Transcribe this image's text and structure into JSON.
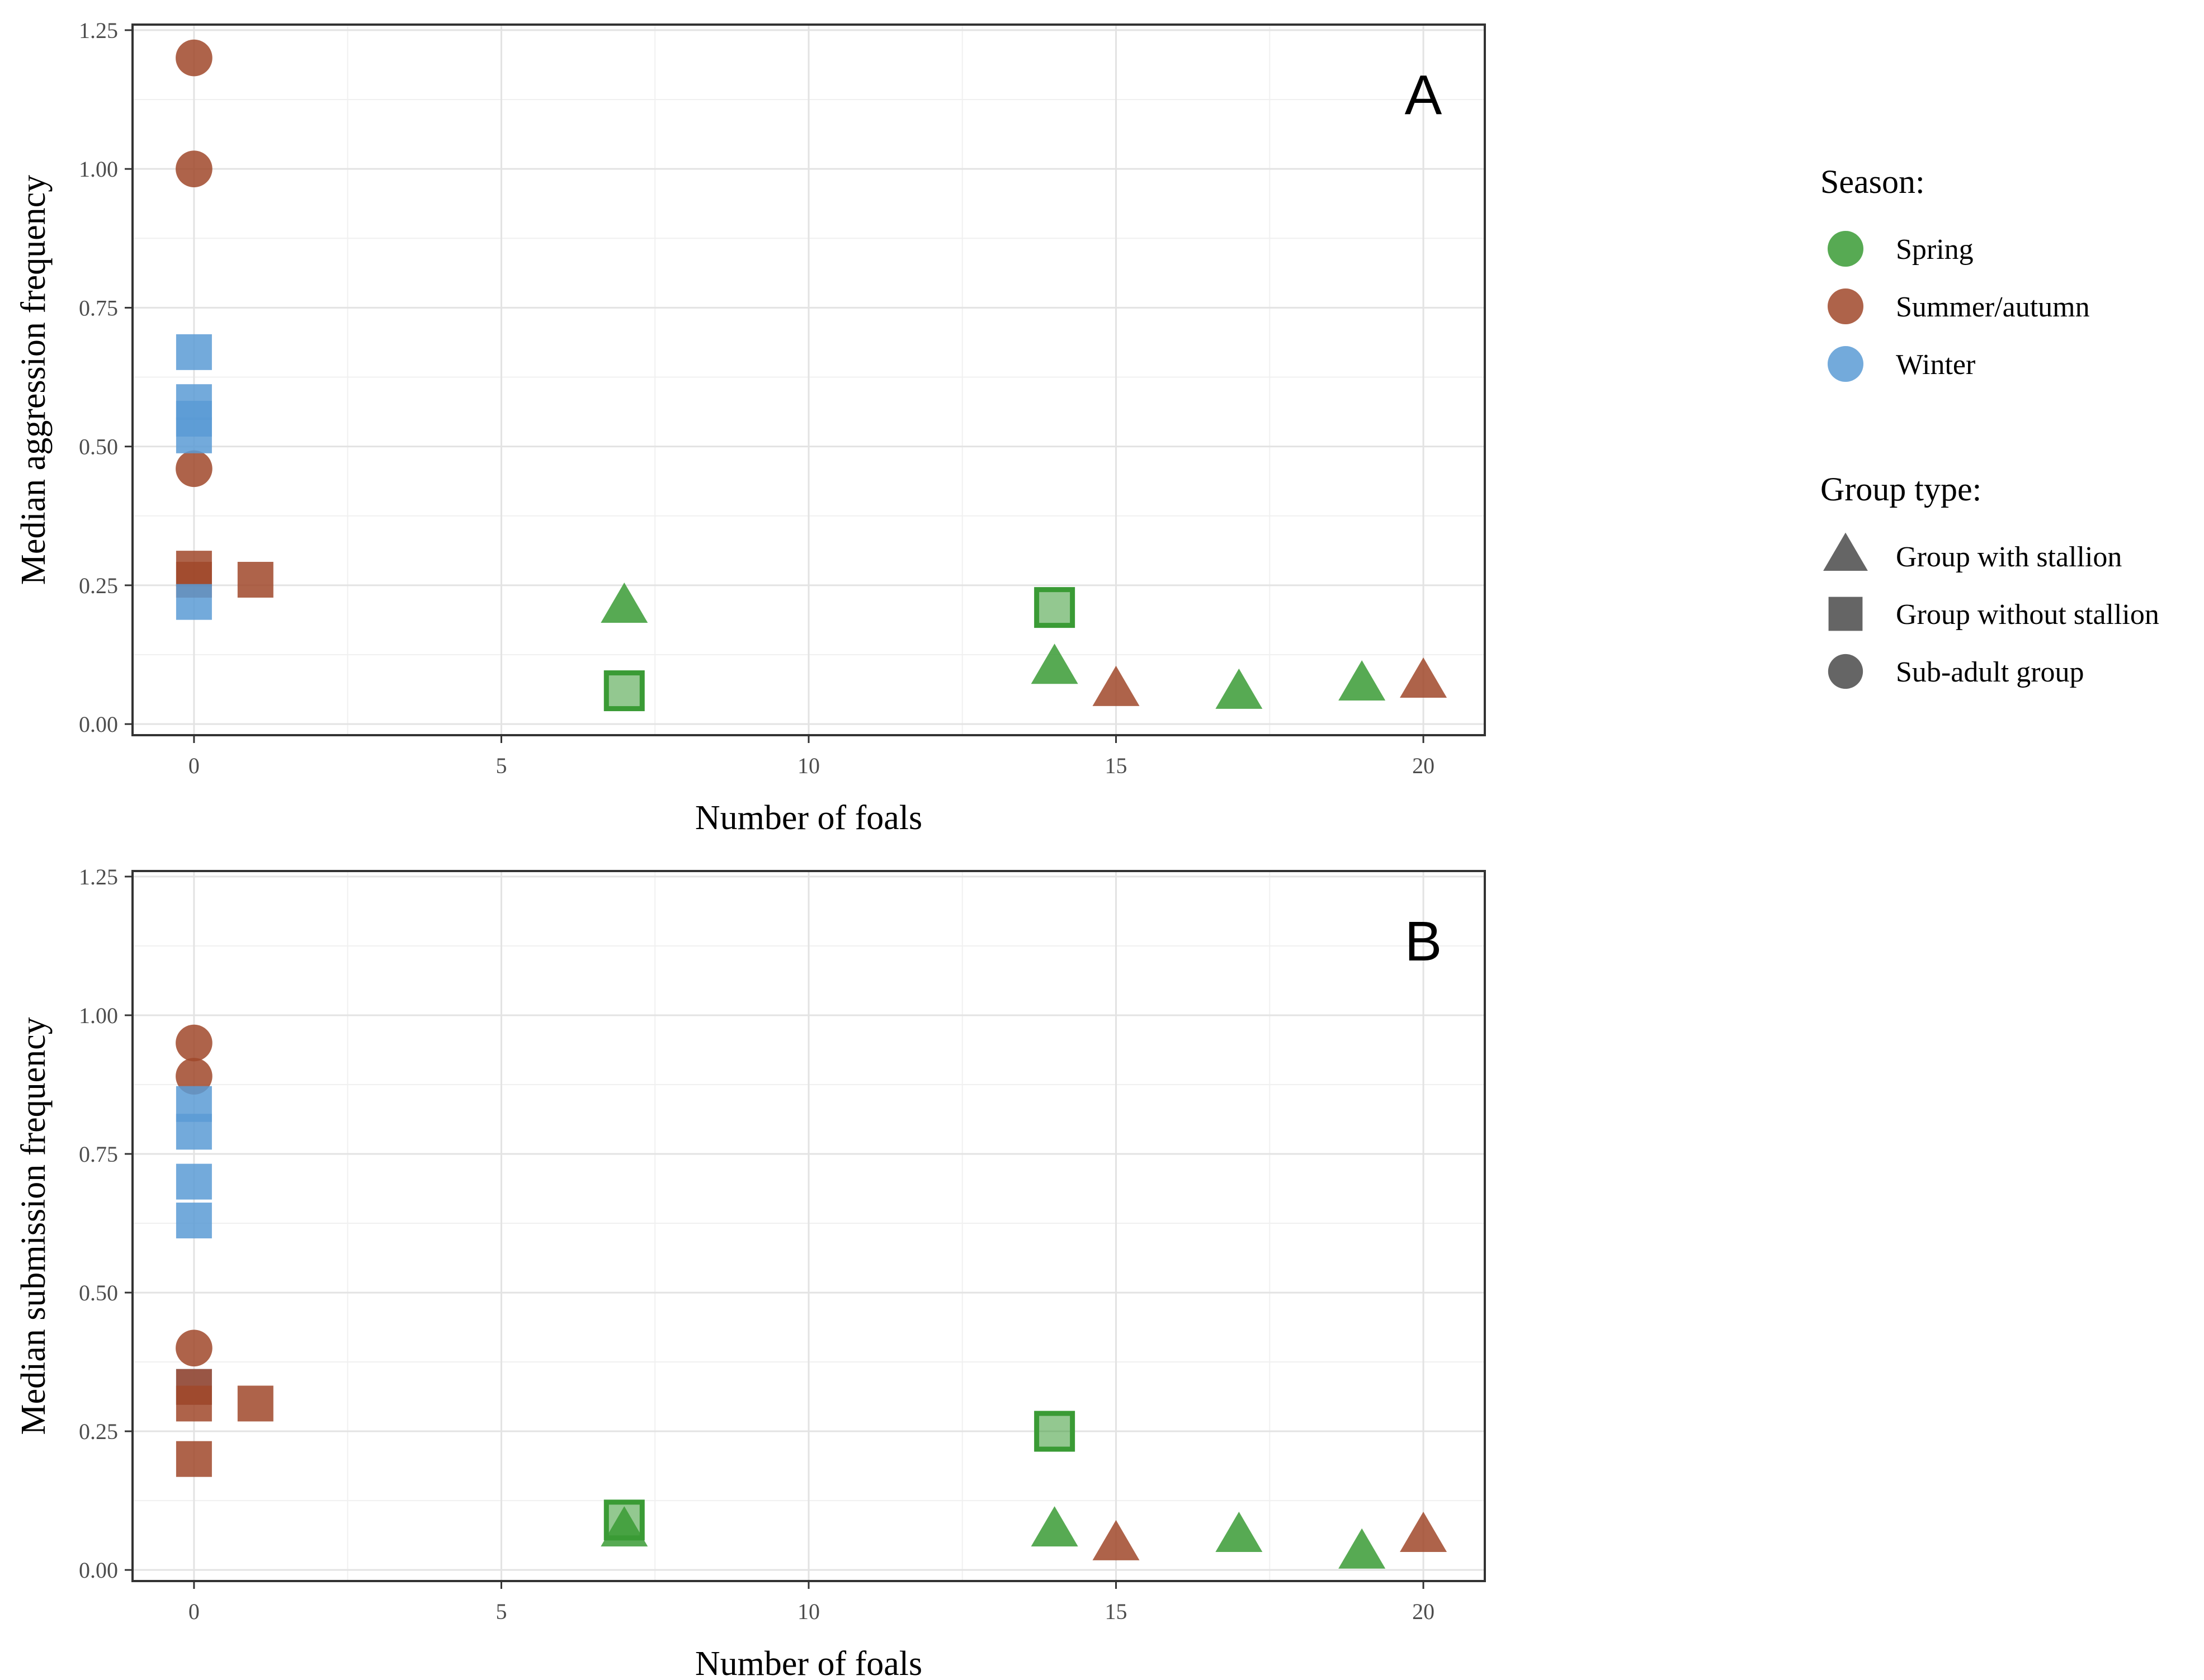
{
  "chart_data": [
    {
      "type": "scatter",
      "panel_label": "A",
      "xlabel": "Number of foals",
      "ylabel": "Median aggression frequency",
      "xlim": [
        -1,
        21
      ],
      "ylim": [
        -0.02,
        1.26
      ],
      "x_ticks": [
        0,
        5,
        10,
        15,
        20
      ],
      "x_tick_labels": [
        "0",
        "5",
        "10",
        "15",
        "20"
      ],
      "y_ticks": [
        0,
        0.25,
        0.5,
        0.75,
        1.0,
        1.25
      ],
      "y_tick_labels": [
        "0.00",
        "0.25",
        "0.50",
        "0.75",
        "1.00",
        "1.25"
      ],
      "points": [
        {
          "x": 0,
          "y": 1.2,
          "season": "Summer/autumn",
          "group": "Sub-adult group"
        },
        {
          "x": 0,
          "y": 1.0,
          "season": "Summer/autumn",
          "group": "Sub-adult group"
        },
        {
          "x": 0,
          "y": 0.46,
          "season": "Summer/autumn",
          "group": "Sub-adult group"
        },
        {
          "x": 0,
          "y": 0.67,
          "season": "Winter",
          "group": "Group without stallion"
        },
        {
          "x": 0,
          "y": 0.58,
          "season": "Winter",
          "group": "Group without stallion"
        },
        {
          "x": 0,
          "y": 0.55,
          "season": "Winter",
          "group": "Group without stallion"
        },
        {
          "x": 0,
          "y": 0.52,
          "season": "Winter",
          "group": "Group without stallion"
        },
        {
          "x": 0,
          "y": 0.28,
          "season": "Summer/autumn",
          "group": "Group without stallion"
        },
        {
          "x": 0,
          "y": 0.26,
          "season": "Summer/autumn",
          "group": "Group without stallion"
        },
        {
          "x": 0,
          "y": 0.22,
          "season": "Winter",
          "group": "Group without stallion"
        },
        {
          "x": 1,
          "y": 0.26,
          "season": "Summer/autumn",
          "group": "Group without stallion"
        },
        {
          "x": 7,
          "y": 0.21,
          "season": "Spring",
          "group": "Group with stallion"
        },
        {
          "x": 7,
          "y": 0.06,
          "season": "Spring",
          "group": "Group without stallion",
          "style": "open"
        },
        {
          "x": 14,
          "y": 0.21,
          "season": "Spring",
          "group": "Group without stallion",
          "style": "open"
        },
        {
          "x": 14,
          "y": 0.1,
          "season": "Spring",
          "group": "Group with stallion"
        },
        {
          "x": 15,
          "y": 0.06,
          "season": "Summer/autumn",
          "group": "Group with stallion"
        },
        {
          "x": 17,
          "y": 0.055,
          "season": "Spring",
          "group": "Group with stallion"
        },
        {
          "x": 19,
          "y": 0.07,
          "season": "Spring",
          "group": "Group with stallion"
        },
        {
          "x": 20,
          "y": 0.075,
          "season": "Summer/autumn",
          "group": "Group with stallion"
        }
      ]
    },
    {
      "type": "scatter",
      "panel_label": "B",
      "xlabel": "Number of foals",
      "ylabel": "Median submission frequency",
      "xlim": [
        -1,
        21
      ],
      "ylim": [
        -0.02,
        1.26
      ],
      "x_ticks": [
        0,
        5,
        10,
        15,
        20
      ],
      "x_tick_labels": [
        "0",
        "5",
        "10",
        "15",
        "20"
      ],
      "y_ticks": [
        0,
        0.25,
        0.5,
        0.75,
        1.0,
        1.25
      ],
      "y_tick_labels": [
        "0.00",
        "0.25",
        "0.50",
        "0.75",
        "1.00",
        "1.25"
      ],
      "points": [
        {
          "x": 0,
          "y": 0.95,
          "season": "Summer/autumn",
          "group": "Sub-adult group"
        },
        {
          "x": 0,
          "y": 0.89,
          "season": "Summer/autumn",
          "group": "Sub-adult group"
        },
        {
          "x": 0,
          "y": 0.4,
          "season": "Summer/autumn",
          "group": "Sub-adult group"
        },
        {
          "x": 0,
          "y": 0.84,
          "season": "Winter",
          "group": "Group without stallion"
        },
        {
          "x": 0,
          "y": 0.79,
          "season": "Winter",
          "group": "Group without stallion"
        },
        {
          "x": 0,
          "y": 0.7,
          "season": "Winter",
          "group": "Group without stallion"
        },
        {
          "x": 0,
          "y": 0.63,
          "season": "Winter",
          "group": "Group without stallion"
        },
        {
          "x": 0,
          "y": 0.33,
          "season": "Winter",
          "group": "Group without stallion"
        },
        {
          "x": 0,
          "y": 0.33,
          "season": "Summer/autumn",
          "group": "Group without stallion"
        },
        {
          "x": 0,
          "y": 0.3,
          "season": "Summer/autumn",
          "group": "Group without stallion"
        },
        {
          "x": 0,
          "y": 0.2,
          "season": "Summer/autumn",
          "group": "Group without stallion"
        },
        {
          "x": 1,
          "y": 0.3,
          "season": "Summer/autumn",
          "group": "Group without stallion"
        },
        {
          "x": 7,
          "y": 0.07,
          "season": "Spring",
          "group": "Group with stallion"
        },
        {
          "x": 7,
          "y": 0.09,
          "season": "Spring",
          "group": "Group without stallion",
          "style": "open"
        },
        {
          "x": 14,
          "y": 0.25,
          "season": "Spring",
          "group": "Group without stallion",
          "style": "open"
        },
        {
          "x": 14,
          "y": 0.07,
          "season": "Spring",
          "group": "Group with stallion"
        },
        {
          "x": 15,
          "y": 0.045,
          "season": "Summer/autumn",
          "group": "Group with stallion"
        },
        {
          "x": 17,
          "y": 0.06,
          "season": "Spring",
          "group": "Group with stallion"
        },
        {
          "x": 19,
          "y": 0.03,
          "season": "Spring",
          "group": "Group with stallion"
        },
        {
          "x": 20,
          "y": 0.06,
          "season": "Summer/autumn",
          "group": "Group with stallion"
        }
      ]
    }
  ],
  "legend": {
    "season_title": "Season:",
    "seasons": [
      {
        "label": "Spring",
        "color": "#3a9b35"
      },
      {
        "label": "Summer/autumn",
        "color": "#a0482a"
      },
      {
        "label": "Winter",
        "color": "#5b9bd5"
      }
    ],
    "group_title": "Group type:",
    "groups": [
      {
        "label": "Group with stallion",
        "shape": "triangle"
      },
      {
        "label": "Group without stallion",
        "shape": "square"
      },
      {
        "label": "Sub-adult group",
        "shape": "circle"
      }
    ],
    "legend_key_color": "#4a4a4a"
  }
}
